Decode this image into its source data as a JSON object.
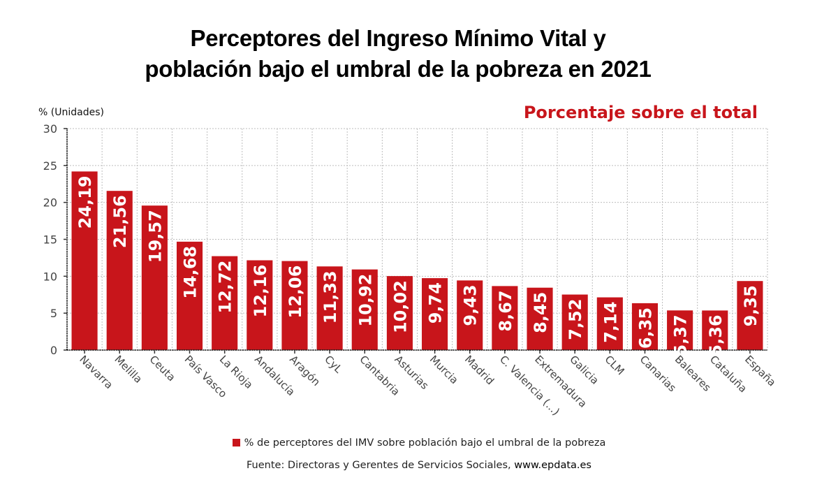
{
  "chart_data": {
    "type": "bar",
    "title": "Perceptores del Ingreso Mínimo Vital y población bajo el umbral de la pobreza en 2021",
    "title_lines": [
      "Perceptores del Ingreso Mínimo Vital y",
      "población bajo el umbral de la pobreza en 2021"
    ],
    "subtitle": "Porcentaje sobre el total",
    "ylabel": "% (Unidades)",
    "xlabel": "",
    "ylim": [
      0,
      30
    ],
    "yticks": [
      0,
      5,
      10,
      15,
      20,
      25,
      30
    ],
    "grid": true,
    "color": "#c8151b",
    "categories": [
      "Navarra",
      "Melilla",
      "Ceuta",
      "País Vasco",
      "La Rioja",
      "Andalucía",
      "Aragón",
      "CyL",
      "Cantabria",
      "Asturias",
      "Murcia",
      "Madrid",
      "C. Valencia (...)",
      "Extremadura",
      "Galicia",
      "CLM",
      "Canarias",
      "Baleares",
      "Cataluña",
      "España"
    ],
    "values": [
      24.19,
      21.56,
      19.57,
      14.68,
      12.72,
      12.16,
      12.06,
      11.33,
      10.92,
      10.02,
      9.74,
      9.43,
      8.67,
      8.45,
      7.52,
      7.14,
      6.35,
      5.37,
      5.36,
      9.35
    ],
    "value_labels": [
      "24,19",
      "21,56",
      "19,57",
      "14,68",
      "12,72",
      "12,16",
      "12,06",
      "11,33",
      "10,92",
      "10,02",
      "9,74",
      "9,43",
      "8,67",
      "8,45",
      "7,52",
      "7,14",
      "6,35",
      "5,37",
      "5,36",
      "9,35"
    ],
    "legend": {
      "position": "bottom-center",
      "entries": [
        "% de perceptores del IMV sobre población bajo el umbral de la pobreza"
      ]
    }
  },
  "footer": {
    "source_prefix": "Fuente: Directoras y Gerentes de Servicios Sociales, ",
    "source_site": "www.epdata.es"
  }
}
